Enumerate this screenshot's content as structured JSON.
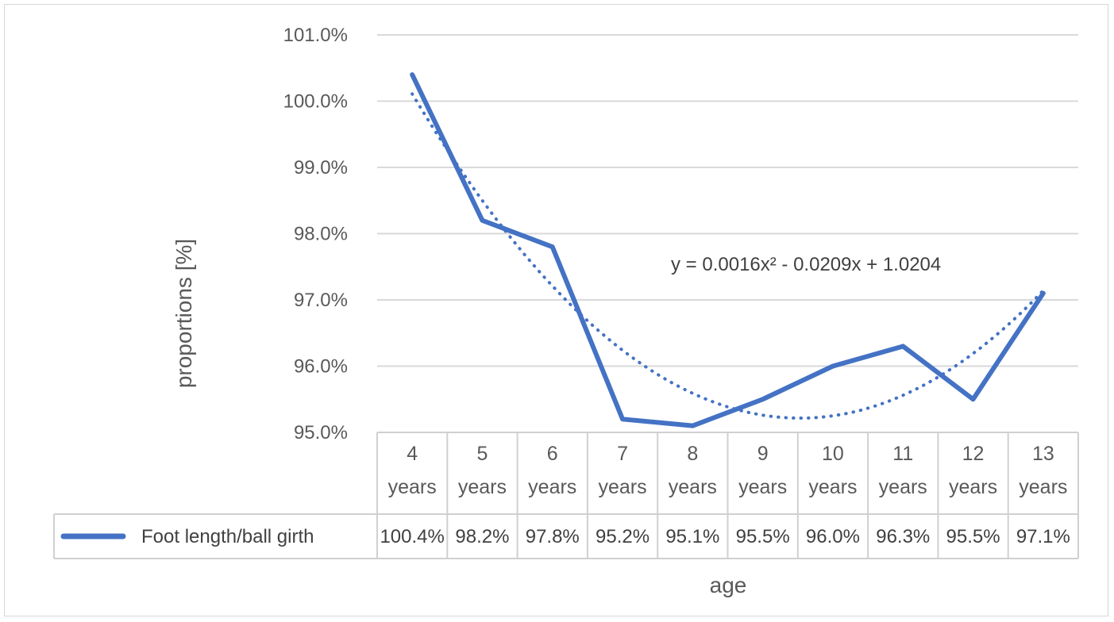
{
  "chart_data": {
    "type": "line",
    "title": "",
    "xlabel": "age",
    "ylabel": "proportions [%]",
    "ylim": [
      95.0,
      101.0
    ],
    "yticks": [
      "95.0%",
      "96.0%",
      "97.0%",
      "98.0%",
      "99.0%",
      "100.0%",
      "101.0%"
    ],
    "categories": [
      [
        "4",
        "years"
      ],
      [
        "5",
        "years"
      ],
      [
        "6",
        "years"
      ],
      [
        "7",
        "years"
      ],
      [
        "8",
        "years"
      ],
      [
        "9",
        "years"
      ],
      [
        "10",
        "years"
      ],
      [
        "11",
        "years"
      ],
      [
        "12",
        "years"
      ],
      [
        "13",
        "years"
      ]
    ],
    "series": [
      {
        "name": "Foot length/ball girth",
        "values": [
          100.4,
          98.2,
          97.8,
          95.2,
          95.1,
          95.5,
          96.0,
          96.3,
          95.5,
          97.1
        ],
        "labels": [
          "100.4%",
          "98.2%",
          "97.8%",
          "95.2%",
          "95.1%",
          "95.5%",
          "96.0%",
          "96.3%",
          "95.5%",
          "97.1%"
        ],
        "color": "#4472c4"
      }
    ],
    "trendline": {
      "type": "polynomial",
      "order": 2,
      "equation": "y = 0.0016x² - 0.0209x + 1.0204",
      "coefficients": [
        0.0016,
        -0.0209,
        1.0204
      ],
      "style": "dotted"
    },
    "grid": true,
    "data_table": true,
    "legend": "in-data-table",
    "colors": {
      "series": "#4472c4",
      "grid": "#d9d9d9",
      "text": "#595959"
    }
  }
}
